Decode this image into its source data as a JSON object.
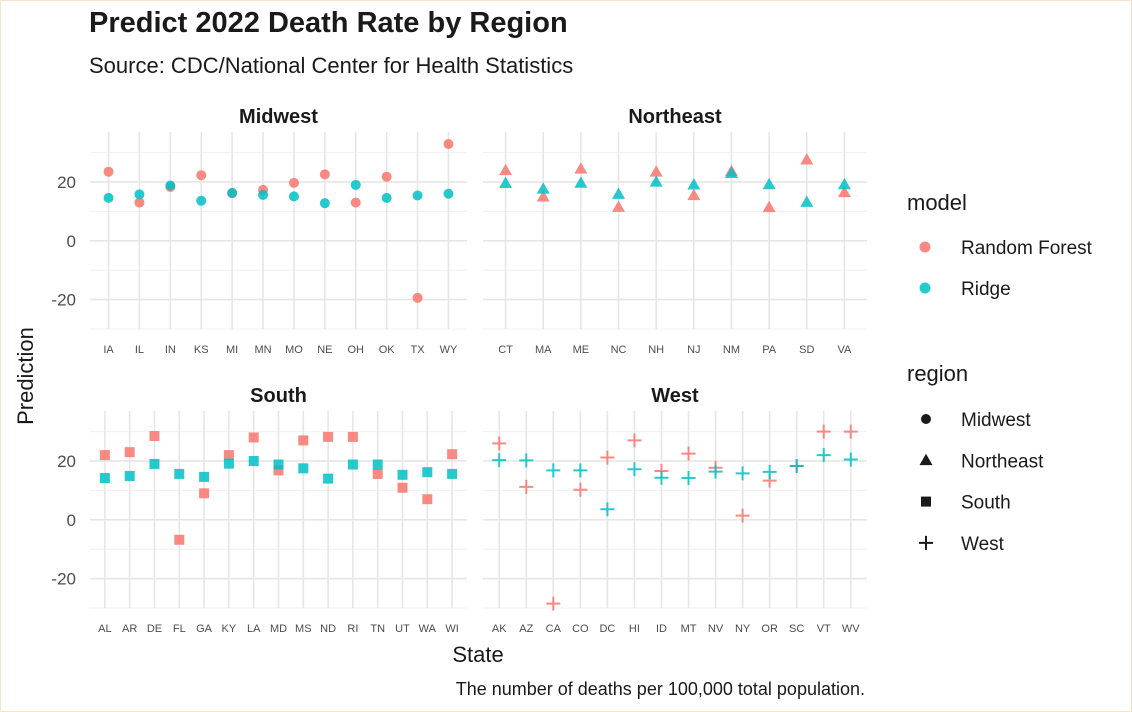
{
  "chart_data": {
    "type": "scatter",
    "title": "Predict 2022 Death Rate by Region",
    "subtitle": "Source: CDC/National Center for Health Statistics",
    "caption": "The number of deaths per 100,000 total population.",
    "xlabel": "State",
    "ylabel": "Prediction",
    "ylim": [
      -30,
      37
    ],
    "yticks": [
      -20,
      0,
      20
    ],
    "grid": true,
    "legend_placement": "right",
    "legends": {
      "model": {
        "title": "model",
        "items": [
          {
            "label": "Random Forest",
            "color": "#F8766D"
          },
          {
            "label": "Ridge",
            "color": "#00BFC4"
          }
        ]
      },
      "region": {
        "title": "region",
        "items": [
          {
            "label": "Midwest",
            "shape": "circle"
          },
          {
            "label": "Northeast",
            "shape": "triangle"
          },
          {
            "label": "South",
            "shape": "square"
          },
          {
            "label": "West",
            "shape": "plus"
          }
        ]
      }
    },
    "panels": [
      {
        "name": "Midwest",
        "shape": "circle",
        "states": [
          "IA",
          "IL",
          "IN",
          "KS",
          "MI",
          "MN",
          "MO",
          "NE",
          "OH",
          "OK",
          "TX",
          "WY"
        ],
        "series": [
          {
            "name": "Random Forest",
            "color": "#F8766D",
            "values": [
              23.5,
              13,
              18.3,
              22.3,
              16.2,
              17.3,
              19.7,
              22.6,
              13,
              21.8,
              -19.4,
              32.9
            ]
          },
          {
            "name": "Ridge",
            "color": "#00BFC4",
            "values": [
              14.6,
              15.8,
              18.8,
              13.6,
              16.3,
              15.6,
              15.1,
              12.8,
              19,
              14.6,
              15.4,
              16
            ]
          }
        ]
      },
      {
        "name": "Northeast",
        "shape": "triangle",
        "states": [
          "CT",
          "MA",
          "ME",
          "NC",
          "NH",
          "NJ",
          "NM",
          "PA",
          "SD",
          "VA"
        ],
        "series": [
          {
            "name": "Random Forest",
            "color": "#F8766D",
            "values": [
              24,
              15,
              24.5,
              11.5,
              23.5,
              15.5,
              23.7,
              11.4,
              27.6,
              16.5
            ]
          },
          {
            "name": "Ridge",
            "color": "#00BFC4",
            "values": [
              19.6,
              17.7,
              19.7,
              15.9,
              20.1,
              19.1,
              23,
              19.2,
              13.2,
              19.2
            ]
          }
        ]
      },
      {
        "name": "South",
        "shape": "square",
        "states": [
          "AL",
          "AR",
          "DE",
          "FL",
          "GA",
          "KY",
          "LA",
          "MD",
          "MS",
          "ND",
          "RI",
          "TN",
          "UT",
          "WA",
          "WI"
        ],
        "series": [
          {
            "name": "Random Forest",
            "color": "#F8766D",
            "values": [
              22,
              23,
              28.5,
              -6.8,
              9,
              22,
              28,
              16.8,
              27,
              28.2,
              28.2,
              15.6,
              10.9,
              7,
              22.3
            ]
          },
          {
            "name": "Ridge",
            "color": "#00BFC4",
            "values": [
              14.2,
              14.9,
              19,
              15.6,
              14.6,
              19.1,
              20,
              18.8,
              17.5,
              14,
              18.8,
              18.8,
              15.3,
              16.2,
              15.6
            ]
          }
        ]
      },
      {
        "name": "West",
        "shape": "plus",
        "states": [
          "AK",
          "AZ",
          "CA",
          "CO",
          "DC",
          "HI",
          "ID",
          "MT",
          "NV",
          "NY",
          "OR",
          "SC",
          "VT",
          "WV"
        ],
        "series": [
          {
            "name": "Random Forest",
            "color": "#F8766D",
            "values": [
              26,
              11.2,
              -28.5,
              10.2,
              21.2,
              27,
              16.6,
              22.5,
              17.7,
              1.4,
              13.3,
              18.3,
              30,
              30
            ]
          },
          {
            "name": "Ridge",
            "color": "#00BFC4",
            "values": [
              20.3,
              20.2,
              16.8,
              16.8,
              3.6,
              17.2,
              14.3,
              14.2,
              16.4,
              15.8,
              16.3,
              18.3,
              22,
              20.5
            ]
          }
        ]
      }
    ]
  }
}
